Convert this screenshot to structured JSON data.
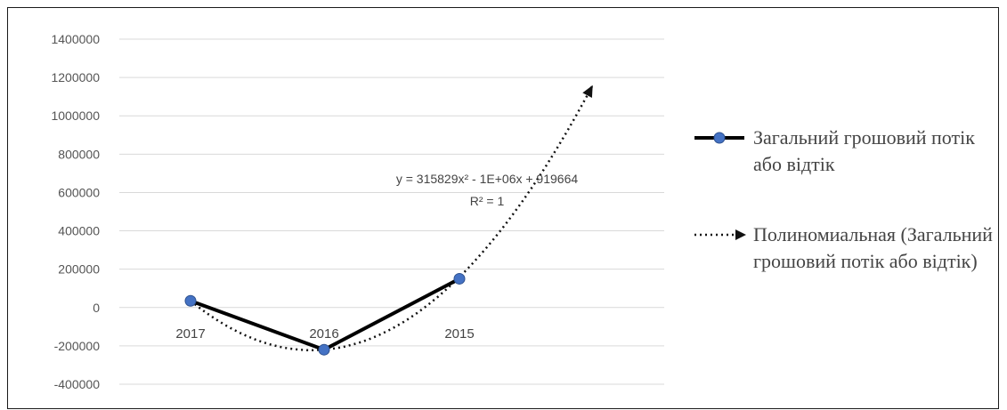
{
  "chart_data": {
    "type": "line",
    "categories": [
      "2017",
      "2016",
      "2015"
    ],
    "series": [
      {
        "name": "Загальний грошовий потік або відтік",
        "values": [
          35000,
          -220000,
          150000
        ],
        "color": "#000000",
        "marker_color": "#4472c4"
      }
    ],
    "trendline": {
      "name": "Полиномиальная (Загальний грошовий потік або відтік)",
      "equation": "y = 315829x² - 1E+06x + 919664",
      "r2": "R² = 1",
      "extends_to_y": 1160000
    },
    "yticks": [
      "1400000",
      "1200000",
      "1000000",
      "800000",
      "600000",
      "400000",
      "200000",
      "0",
      "-200000",
      "-400000"
    ],
    "ylim": [
      -400000,
      1400000
    ],
    "grid": true,
    "legend_position": "right"
  }
}
